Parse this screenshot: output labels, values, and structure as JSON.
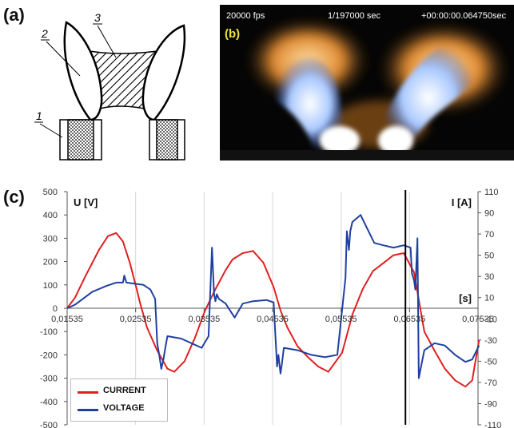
{
  "panels": {
    "a": "(a)",
    "b": "(b)",
    "c": "(c)"
  },
  "diagram": {
    "label_1": "1",
    "label_2": "2",
    "label_3": "3"
  },
  "photo": {
    "fps": "20000 fps",
    "exposure": "1/197000 sec",
    "time": "+00:00:00.064750sec",
    "panel_tag": "(b)"
  },
  "colors": {
    "current": "#e02020",
    "voltage": "#2040a0",
    "marker": "#000000"
  },
  "chart_data": {
    "type": "line",
    "x_ticks": [
      "0,01535",
      "0,02535",
      "0,03535",
      "0,04535",
      "0,05535",
      "0,06535",
      "0,07535"
    ],
    "x_label": "[s]",
    "xlim": [
      0.01535,
      0.07535
    ],
    "y_left": {
      "label": "U [V]",
      "range": [
        -500,
        500
      ],
      "ticks": [
        500,
        400,
        300,
        200,
        100,
        0,
        -100,
        -200,
        -300,
        -400,
        -500
      ]
    },
    "y_right": {
      "label": "I [A]",
      "range": [
        -110,
        110
      ],
      "ticks": [
        110,
        90,
        70,
        50,
        30,
        10,
        -10,
        -30,
        -50,
        -70,
        -90,
        -110
      ]
    },
    "grid": "vertical",
    "legend_position": "bottom-left",
    "marker_x": 0.06475,
    "series": [
      {
        "name": "CURRENT",
        "axis": "right",
        "x": [
          0.01535,
          0.0165,
          0.018,
          0.02,
          0.0213,
          0.0225,
          0.0235,
          0.0245,
          0.0255,
          0.026,
          0.027,
          0.0285,
          0.03,
          0.031,
          0.0325,
          0.034,
          0.0355,
          0.037,
          0.0385,
          0.0395,
          0.041,
          0.0425,
          0.044,
          0.0455,
          0.0465,
          0.0475,
          0.049,
          0.0505,
          0.052,
          0.0535,
          0.0555,
          0.057,
          0.0585,
          0.06,
          0.061,
          0.062,
          0.063,
          0.0645,
          0.066,
          0.0675,
          0.069,
          0.0705,
          0.072,
          0.0735,
          0.0745,
          0.0755
        ],
        "y": [
          0,
          10,
          30,
          55,
          68,
          71,
          63,
          43,
          18,
          5,
          -18,
          -40,
          -57,
          -60,
          -50,
          -28,
          -2,
          18,
          36,
          46,
          52,
          54,
          43,
          20,
          -2,
          -18,
          -36,
          -46,
          -55,
          -60,
          -42,
          -6,
          18,
          35,
          40,
          45,
          50,
          52,
          34,
          -22,
          -40,
          -57,
          -68,
          -74,
          -68,
          -30
        ]
      },
      {
        "name": "VOLTAGE",
        "axis": "left",
        "x": [
          0.01535,
          0.0165,
          0.019,
          0.021,
          0.0225,
          0.0235,
          0.0237,
          0.024,
          0.0265,
          0.0275,
          0.0282,
          0.0285,
          0.0288,
          0.0291,
          0.0294,
          0.0298,
          0.03,
          0.032,
          0.0335,
          0.035,
          0.036,
          0.0365,
          0.0368,
          0.037,
          0.0372,
          0.0375,
          0.0385,
          0.0398,
          0.041,
          0.0425,
          0.0445,
          0.0455,
          0.046,
          0.0462,
          0.0465,
          0.0467,
          0.047,
          0.049,
          0.051,
          0.053,
          0.0548,
          0.056,
          0.0562,
          0.0565,
          0.0567,
          0.057,
          0.0582,
          0.0592,
          0.0602,
          0.0615,
          0.063,
          0.0645,
          0.0655,
          0.0657,
          0.066,
          0.0662,
          0.0665,
          0.0667,
          0.0675,
          0.069,
          0.0705,
          0.072,
          0.0735,
          0.0745,
          0.0755
        ],
        "y": [
          0,
          15,
          70,
          95,
          110,
          110,
          140,
          110,
          100,
          80,
          40,
          -150,
          -200,
          -260,
          -220,
          -150,
          -120,
          -130,
          -150,
          -170,
          -120,
          260,
          60,
          30,
          60,
          40,
          20,
          -40,
          20,
          30,
          35,
          25,
          -250,
          -200,
          -280,
          -240,
          -170,
          -180,
          -200,
          -210,
          -200,
          130,
          330,
          250,
          330,
          370,
          400,
          340,
          280,
          270,
          260,
          270,
          260,
          150,
          120,
          80,
          300,
          -300,
          -180,
          -150,
          -160,
          -200,
          -230,
          -220,
          -160
        ]
      }
    ]
  }
}
